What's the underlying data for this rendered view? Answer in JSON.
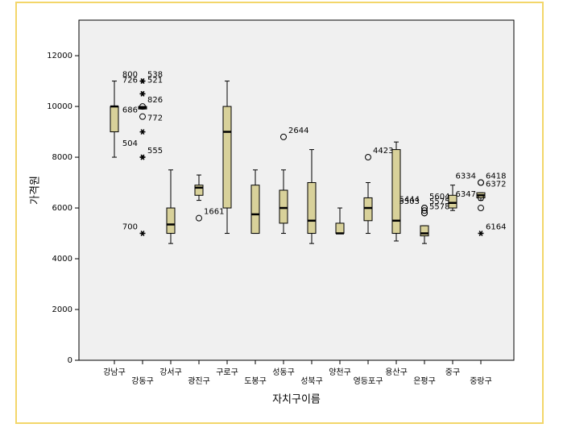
{
  "chart_data": {
    "type": "box",
    "y_label": "가격원",
    "x_label": "자치구이름",
    "categories": [
      "강남구",
      "강동구",
      "강서구",
      "광진구",
      "구로구",
      "도봉구",
      "성동구",
      "성북구",
      "양천구",
      "영등포구",
      "용산구",
      "은평구",
      "중구",
      "중랑구"
    ],
    "color": "#d8d19a",
    "ylim": [
      0,
      13400
    ],
    "yticks": [
      0,
      2000,
      4000,
      6000,
      8000,
      10000,
      12000
    ],
    "boxes": [
      {
        "whisker_low": 8000,
        "q1": 9000,
        "median": 10000,
        "q3": 10000,
        "whisker_high": 11000,
        "outliers": []
      },
      {
        "whisker_low": 9900,
        "q1": 9900,
        "median": 9950,
        "q3": 10000,
        "whisker_high": 10000,
        "outliers": [
          {
            "value": 11000,
            "label": "538",
            "shape": "star"
          },
          {
            "value": 11000,
            "label": "800",
            "shape": "star"
          },
          {
            "value": 10500,
            "label": "521",
            "shape": "star"
          },
          {
            "value": 10500,
            "label": "726",
            "shape": "star"
          },
          {
            "value": 10000,
            "label": "826",
            "shape": "circle"
          },
          {
            "value": 9600,
            "label": "686",
            "shape": "circle"
          },
          {
            "value": 9000,
            "label": "772",
            "shape": "star"
          },
          {
            "value": 8000,
            "label": "504",
            "shape": "star"
          },
          {
            "value": 8000,
            "label": "555",
            "shape": "star"
          },
          {
            "value": 5000,
            "label": "700",
            "shape": "star"
          }
        ]
      },
      {
        "whisker_low": 4600,
        "q1": 5000,
        "median": 5350,
        "q3": 6000,
        "whisker_high": 7500,
        "outliers": []
      },
      {
        "whisker_low": 6300,
        "q1": 6500,
        "median": 6800,
        "q3": 6900,
        "whisker_high": 7300,
        "outliers": [
          {
            "value": 5600,
            "label": "1661",
            "shape": "circle"
          }
        ]
      },
      {
        "whisker_low": 5000,
        "q1": 6000,
        "median": 9000,
        "q3": 10000,
        "whisker_high": 11000,
        "outliers": []
      },
      {
        "whisker_low": 5000,
        "q1": 5000,
        "median": 5750,
        "q3": 6900,
        "whisker_high": 7500,
        "outliers": []
      },
      {
        "whisker_low": 5000,
        "q1": 5400,
        "median": 6000,
        "q3": 6700,
        "whisker_high": 7500,
        "outliers": [
          {
            "value": 8800,
            "label": "2644",
            "shape": "circle"
          }
        ]
      },
      {
        "whisker_low": 4600,
        "q1": 5000,
        "median": 5500,
        "q3": 7000,
        "whisker_high": 8300,
        "outliers": []
      },
      {
        "whisker_low": 5000,
        "q1": 5000,
        "median": 5000,
        "q3": 5400,
        "whisker_high": 6000,
        "outliers": []
      },
      {
        "whisker_low": 5000,
        "q1": 5500,
        "median": 6000,
        "q3": 6400,
        "whisker_high": 7000,
        "outliers": [
          {
            "value": 8000,
            "label": "4423",
            "shape": "circle"
          }
        ]
      },
      {
        "whisker_low": 4700,
        "q1": 5000,
        "median": 5500,
        "q3": 8300,
        "whisker_high": 8600,
        "outliers": []
      },
      {
        "whisker_low": 4600,
        "q1": 4900,
        "median": 5000,
        "q3": 5300,
        "whisker_high": 5300,
        "outliers": [
          {
            "value": 6000,
            "label": "5575",
            "shape": "circle"
          },
          {
            "value": 6000,
            "label": "5503",
            "shape": "circle"
          },
          {
            "value": 5900,
            "label": "5604",
            "shape": "circle"
          },
          {
            "value": 5800,
            "label": "5444",
            "shape": "circle"
          },
          {
            "value": 5800,
            "label": "5578",
            "shape": "circle"
          }
        ]
      },
      {
        "whisker_low": 5900,
        "q1": 6000,
        "median": 6200,
        "q3": 6500,
        "whisker_high": 6900,
        "outliers": []
      },
      {
        "whisker_low": 6300,
        "q1": 6400,
        "median": 6500,
        "q3": 6600,
        "whisker_high": 6600,
        "outliers": [
          {
            "value": 7000,
            "label": "6418",
            "shape": "circle"
          },
          {
            "value": 7000,
            "label": "6334",
            "shape": "circle"
          },
          {
            "value": 6400,
            "label": "6372",
            "shape": "circle"
          },
          {
            "value": 6000,
            "label": "6347",
            "shape": "circle"
          },
          {
            "value": 5000,
            "label": "6164",
            "shape": "star"
          }
        ]
      }
    ]
  }
}
